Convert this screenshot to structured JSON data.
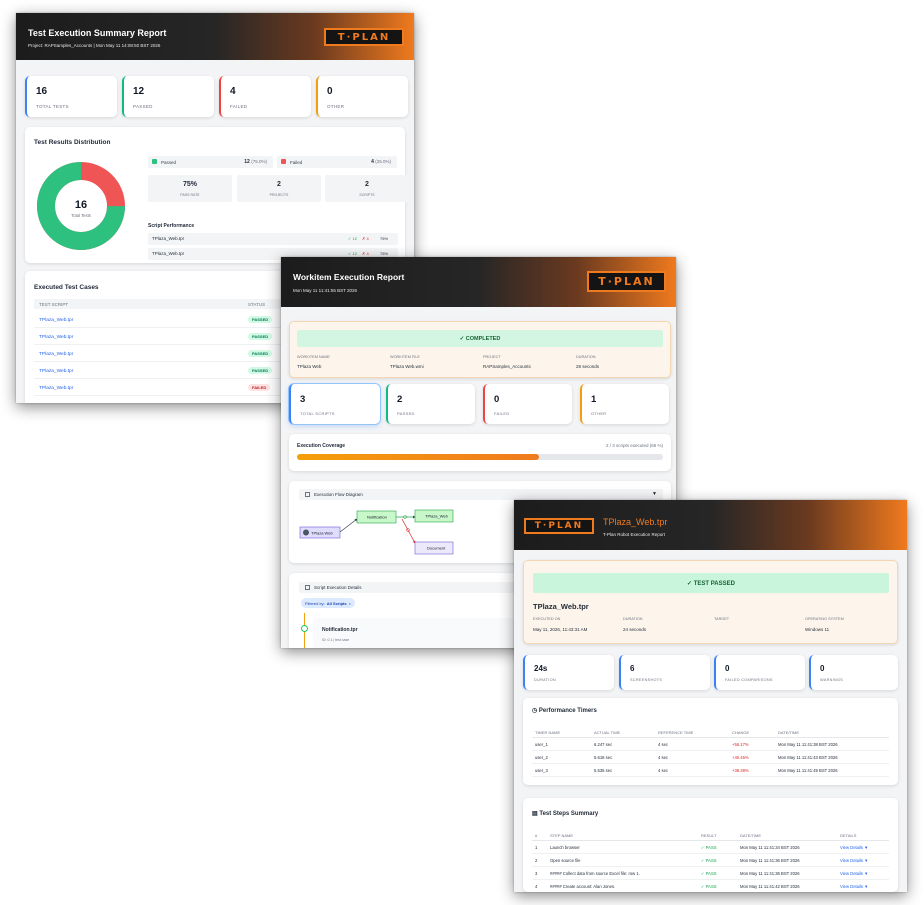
{
  "summary": {
    "title": "Test Execution Summary Report",
    "subtitle": "Project: RAPSamples_Accounts | Mon May 11 14:08:50 BST 2026",
    "logo": "T·PLAN",
    "stats": [
      {
        "value": "16",
        "label": "TOTAL TESTS",
        "color": "#3b82f6"
      },
      {
        "value": "12",
        "label": "PASSED",
        "color": "#10b981"
      },
      {
        "value": "4",
        "label": "FAILED",
        "color": "#ef4444"
      },
      {
        "value": "0",
        "label": "OTHER",
        "color": "#f59e0b"
      }
    ],
    "distribution": {
      "heading": "Test Results Distribution",
      "total": "16",
      "total_label": "Total Tests",
      "passed_label": "Passed",
      "passed_count": "12",
      "passed_pct": "(75.0%)",
      "failed_label": "Failed",
      "failed_count": "4",
      "failed_pct": "(25.0%)",
      "passed_fraction": 0.75,
      "colors": {
        "passed": "#2ec07f",
        "failed": "#ef5555"
      },
      "metrics": [
        {
          "value": "75%",
          "label": "PASS RATE"
        },
        {
          "value": "2",
          "label": "PROJECTS"
        },
        {
          "value": "2",
          "label": "SCRIPTS"
        }
      ],
      "perf_heading": "Script Performance",
      "perf_rows": [
        {
          "name": "TPlaza_Web.tpr",
          "pass": "✓ 12",
          "fail": "✗ 4",
          "pct": "75%"
        },
        {
          "name": "TPlaza_Web.tpr",
          "pass": "✓ 12",
          "fail": "✗ 4",
          "pct": "75%"
        }
      ]
    },
    "cases": {
      "heading": "Executed Test Cases",
      "col_script": "TEST SCRIPT",
      "col_status": "STATUS",
      "rows": [
        {
          "script": "TPlaza_Web.tpr",
          "status": "PASSED"
        },
        {
          "script": "TPlaza_Web.tpr",
          "status": "PASSED"
        },
        {
          "script": "TPlaza_Web.tpr",
          "status": "PASSED"
        },
        {
          "script": "TPlaza_Web.tpr",
          "status": "PASSED"
        },
        {
          "script": "TPlaza_Web.tpr",
          "status": "FAILED"
        }
      ]
    }
  },
  "workitem": {
    "title": "Workitem Execution Report",
    "subtitle": "Mon May 11 11:41:55 BST 2026",
    "logo": "T·PLAN",
    "status": "✓ COMPLETED",
    "meta": [
      {
        "label": "WORKITEM NAME",
        "value": "TPlaza Web"
      },
      {
        "label": "WORKITEM FILE",
        "value": "TPlaza Web.wmi"
      },
      {
        "label": "PROJECT",
        "value": "RAPSamples_Accounts"
      },
      {
        "label": "DURATION",
        "value": "28 seconds"
      }
    ],
    "stats": [
      {
        "value": "3",
        "label": "TOTAL SCRIPTS",
        "color": "#3b82f6"
      },
      {
        "value": "2",
        "label": "PASSED",
        "color": "#10b981"
      },
      {
        "value": "0",
        "label": "FAILED",
        "color": "#ef4444"
      },
      {
        "value": "1",
        "label": "OTHER",
        "color": "#f59e0b"
      }
    ],
    "coverage": {
      "label": "Execution Coverage",
      "text": "2 / 3 scripts executed (66 %)",
      "fraction": 0.66
    },
    "flow": {
      "heading": "Execution Flow Diagram",
      "nodes": {
        "start": "TPlaza Web",
        "notify": "Notification",
        "web": "TPlaza_Web",
        "doc": "Document"
      }
    },
    "details": {
      "heading": "Script Execution Details",
      "filter_label": "Filtered by:",
      "filter_value": "All Scripts",
      "item_name": "Notification.tpr",
      "item_sub": "ID: 0.1 | test case"
    }
  },
  "robot": {
    "title": "TPlaza_Web.tpr",
    "subtitle": "T-Plan Robot Execution Report",
    "logo": "T·PLAN",
    "status": "✓ TEST PASSED",
    "script_name": "TPlaza_Web.tpr",
    "meta": [
      {
        "label": "EXECUTED ON",
        "value": "May 11, 2026, 11:43:31 AM"
      },
      {
        "label": "DURATION",
        "value": "24 seconds"
      },
      {
        "label": "TARGET",
        "value": ""
      },
      {
        "label": "OPERATING SYSTEM",
        "value": "Windows 11"
      }
    ],
    "stats": [
      {
        "value": "24s",
        "label": "DURATION",
        "color": "#3b82f6"
      },
      {
        "value": "6",
        "label": "SCREENSHOTS",
        "color": "#3b82f6"
      },
      {
        "value": "0",
        "label": "FAILED COMPARISONS",
        "color": "#3b82f6"
      },
      {
        "value": "0",
        "label": "WARNINGS",
        "color": "#3b82f6"
      }
    ],
    "timers": {
      "heading": "Performance Timers",
      "cols": [
        "TIMER NAME",
        "ACTUAL TIME",
        "REFERENCE TIME",
        "CHANGE",
        "DATE/TIME"
      ],
      "rows": [
        [
          "user_1",
          "6.247 sec",
          "4 sec",
          "+56.17%",
          "Mon May 11 11:41:38 BST 2026"
        ],
        [
          "user_2",
          "5.618 sec",
          "4 sec",
          "+40.45%",
          "Mon May 11 11:41:43 BST 2026"
        ],
        [
          "user_3",
          "5.535 sec",
          "4 sec",
          "+38.38%",
          "Mon May 11 11:41:49 BST 2026"
        ]
      ]
    },
    "steps": {
      "heading": "Test Steps Summary",
      "cols": [
        "#",
        "STEP NAME",
        "RESULT",
        "DATE/TIME",
        "DETAILS"
      ],
      "rows": [
        [
          "1",
          "Launch browser",
          "✓ PASS",
          "Mon May 11 11:41:34 BST 2026",
          "View Details ▼"
        ],
        [
          "2",
          "Open source file",
          "✓ PASS",
          "Mon May 11 11:41:36 BST 2026",
          "View Details ▼"
        ],
        [
          "3",
          "##### Collect data from source Excel file: row 1.",
          "✓ PASS",
          "Mon May 11 11:41:36 BST 2026",
          "View Details ▼"
        ],
        [
          "4",
          "##### Create account: Alan Jones.",
          "✓ PASS",
          "Mon May 11 11:41:42 BST 2026",
          "View Details ▼"
        ]
      ]
    }
  }
}
